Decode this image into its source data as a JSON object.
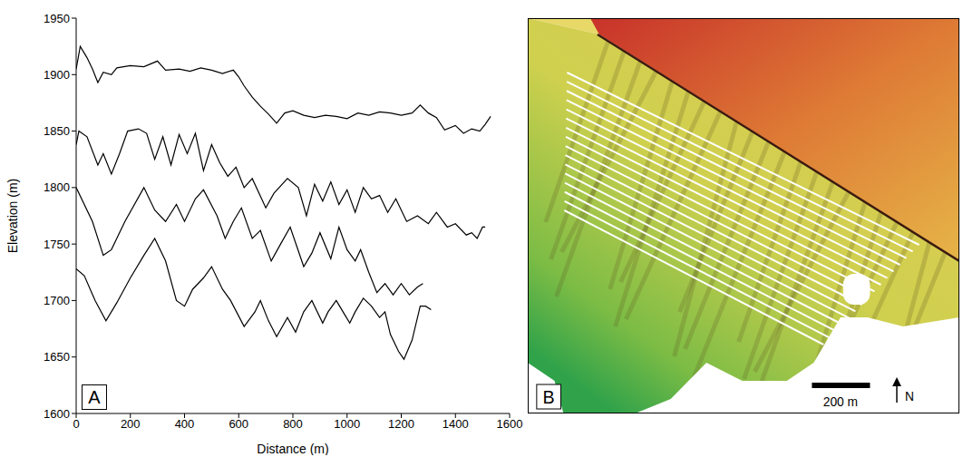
{
  "chart_data": {
    "type": "line",
    "panel_label": "A",
    "x_label": "Distance (m)",
    "y_label": "Elevation (m)",
    "xlim": [
      0,
      1600
    ],
    "xticks": [
      0,
      200,
      400,
      600,
      800,
      1000,
      1200,
      1400,
      1600
    ],
    "ylim": [
      1600,
      1950
    ],
    "yticks": [
      1600,
      1650,
      1700,
      1750,
      1800,
      1850,
      1900,
      1950
    ],
    "grid": false,
    "series": [
      {
        "color": "#000000",
        "x": [
          0,
          15,
          40,
          60,
          80,
          100,
          130,
          150,
          200,
          250,
          300,
          330,
          380,
          420,
          460,
          500,
          540,
          580,
          600,
          620,
          650,
          680,
          710,
          740,
          770,
          800,
          840,
          880,
          920,
          960,
          1000,
          1040,
          1080,
          1120,
          1160,
          1200,
          1240,
          1270,
          1300,
          1330,
          1360,
          1400,
          1430,
          1460,
          1490,
          1510,
          1530
        ],
        "values": [
          1905,
          1925,
          1915,
          1905,
          1893,
          1902,
          1900,
          1906,
          1908,
          1907,
          1912,
          1904,
          1905,
          1903,
          1906,
          1904,
          1901,
          1904,
          1898,
          1890,
          1880,
          1872,
          1865,
          1857,
          1866,
          1868,
          1864,
          1862,
          1864,
          1863,
          1861,
          1866,
          1864,
          1867,
          1866,
          1864,
          1866,
          1873,
          1866,
          1862,
          1851,
          1855,
          1848,
          1852,
          1850,
          1856,
          1863
        ]
      },
      {
        "color": "#000000",
        "x": [
          0,
          10,
          40,
          80,
          100,
          130,
          160,
          190,
          230,
          260,
          290,
          320,
          350,
          380,
          410,
          440,
          470,
          500,
          530,
          560,
          590,
          620,
          650,
          700,
          730,
          780,
          820,
          850,
          880,
          910,
          940,
          970,
          1000,
          1030,
          1060,
          1090,
          1120,
          1150,
          1180,
          1220,
          1260,
          1300,
          1330,
          1370,
          1400,
          1440,
          1460,
          1480,
          1500,
          1510
        ],
        "values": [
          1838,
          1850,
          1845,
          1820,
          1830,
          1812,
          1830,
          1850,
          1852,
          1848,
          1825,
          1845,
          1820,
          1847,
          1830,
          1848,
          1815,
          1838,
          1822,
          1810,
          1818,
          1800,
          1808,
          1782,
          1795,
          1808,
          1800,
          1775,
          1803,
          1788,
          1805,
          1785,
          1798,
          1778,
          1800,
          1790,
          1793,
          1778,
          1790,
          1770,
          1775,
          1768,
          1778,
          1765,
          1768,
          1758,
          1760,
          1755,
          1765,
          1765
        ]
      },
      {
        "color": "#000000",
        "x": [
          0,
          60,
          100,
          130,
          180,
          250,
          290,
          330,
          370,
          400,
          440,
          470,
          520,
          550,
          580,
          610,
          650,
          680,
          720,
          750,
          790,
          840,
          870,
          900,
          940,
          970,
          1000,
          1030,
          1050,
          1080,
          1110,
          1140,
          1170,
          1200,
          1230,
          1260,
          1280
        ],
        "values": [
          1800,
          1770,
          1740,
          1745,
          1770,
          1800,
          1780,
          1770,
          1785,
          1770,
          1790,
          1798,
          1775,
          1755,
          1770,
          1782,
          1755,
          1762,
          1735,
          1748,
          1765,
          1730,
          1742,
          1760,
          1737,
          1765,
          1745,
          1735,
          1745,
          1725,
          1707,
          1715,
          1705,
          1715,
          1705,
          1712,
          1715
        ]
      },
      {
        "color": "#000000",
        "x": [
          0,
          30,
          70,
          110,
          150,
          200,
          250,
          290,
          330,
          370,
          400,
          430,
          470,
          500,
          540,
          570,
          620,
          660,
          680,
          710,
          740,
          780,
          810,
          840,
          870,
          910,
          930,
          960,
          990,
          1010,
          1030,
          1060,
          1090,
          1120,
          1140,
          1160,
          1190,
          1210,
          1240,
          1270,
          1290,
          1310
        ],
        "values": [
          1728,
          1722,
          1700,
          1682,
          1698,
          1720,
          1740,
          1755,
          1735,
          1700,
          1695,
          1710,
          1720,
          1730,
          1710,
          1700,
          1677,
          1690,
          1700,
          1682,
          1668,
          1685,
          1672,
          1690,
          1700,
          1680,
          1690,
          1700,
          1688,
          1680,
          1690,
          1702,
          1695,
          1685,
          1690,
          1670,
          1655,
          1648,
          1665,
          1695,
          1695,
          1692
        ]
      }
    ]
  },
  "map": {
    "panel_label": "B",
    "scale_bar": "200 m",
    "north": "N"
  }
}
